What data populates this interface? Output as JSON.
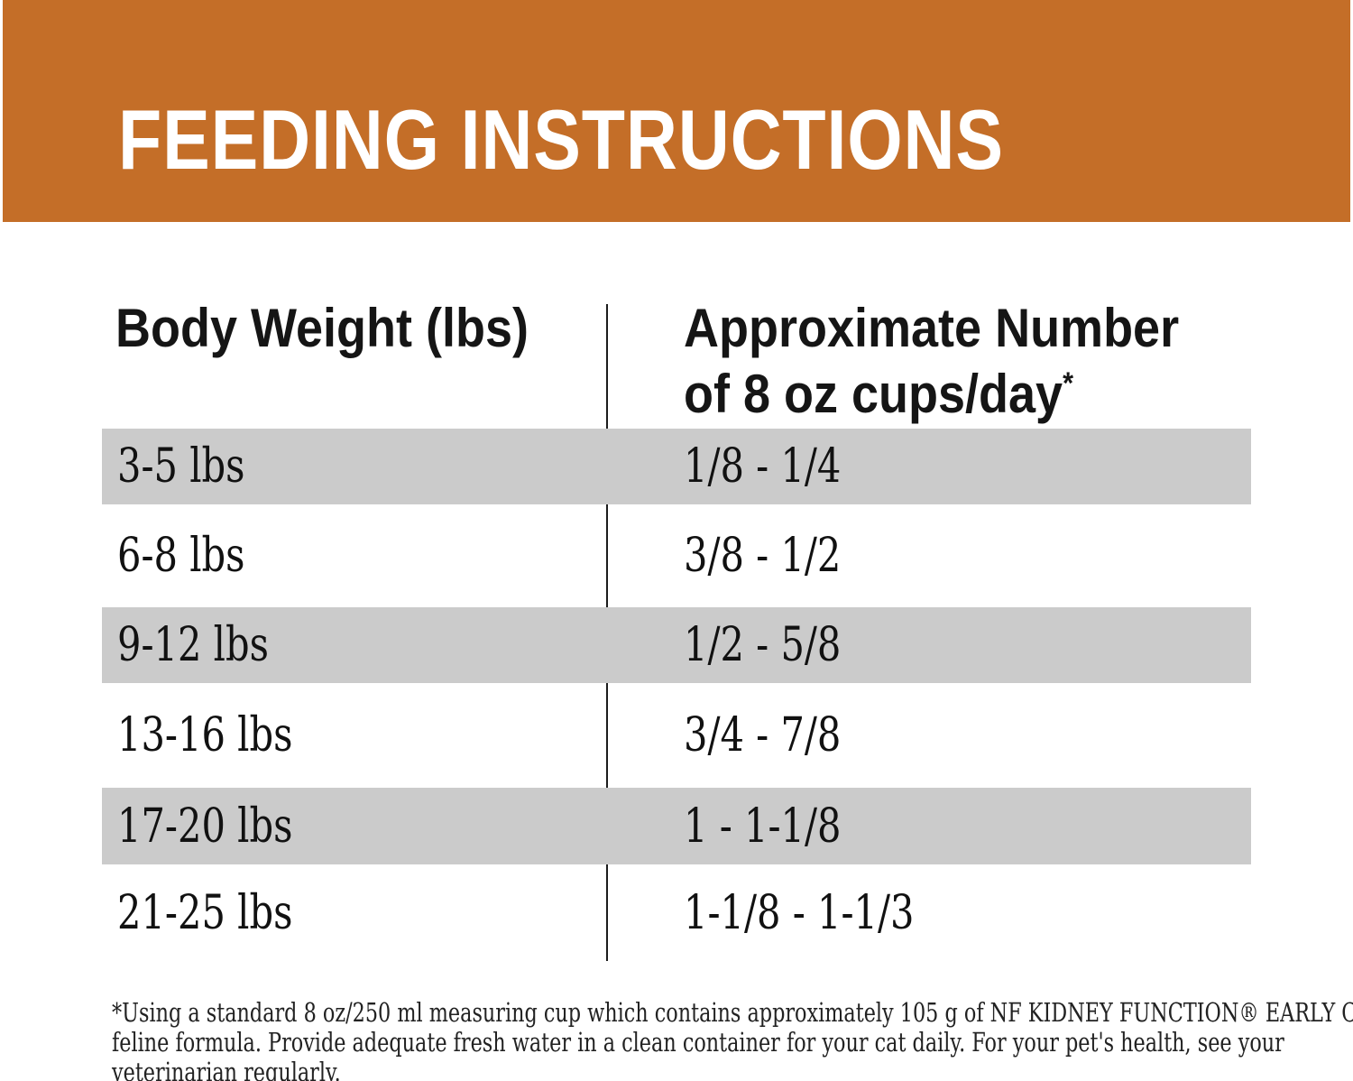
{
  "banner": {
    "title": "FEEDING INSTRUCTIONS",
    "background_color": "#C46E28",
    "text_color": "#FFFFFF"
  },
  "table": {
    "columns": [
      {
        "label": "Body Weight (lbs)"
      },
      {
        "label_line1": "Approximate Number",
        "label_line2": "of 8 oz cups/day",
        "superscript": "*"
      }
    ],
    "rows": [
      {
        "weight": "3-5 lbs",
        "cups": "1/8 - 1/4"
      },
      {
        "weight": "6-8 lbs",
        "cups": "3/8 - 1/2"
      },
      {
        "weight": "9-12 lbs",
        "cups": "1/2 - 5/8"
      },
      {
        "weight": "13-16 lbs",
        "cups": "3/4 - 7/8"
      },
      {
        "weight": "17-20 lbs",
        "cups": "1 - 1-1/8"
      },
      {
        "weight": "21-25 lbs",
        "cups": "1-1/8 - 1-1/3"
      }
    ],
    "stripe_color": "#CBCBCB"
  },
  "footnote": {
    "text": "*Using a standard 8 oz/250 ml measuring cup which contains approximately 105 g of NF KIDNEY FUNCTION® EARLY CARE\nfeline formula. Provide adequate fresh water in a clean container for your cat daily. For your pet's health, see your\nveterinarian regularly."
  }
}
